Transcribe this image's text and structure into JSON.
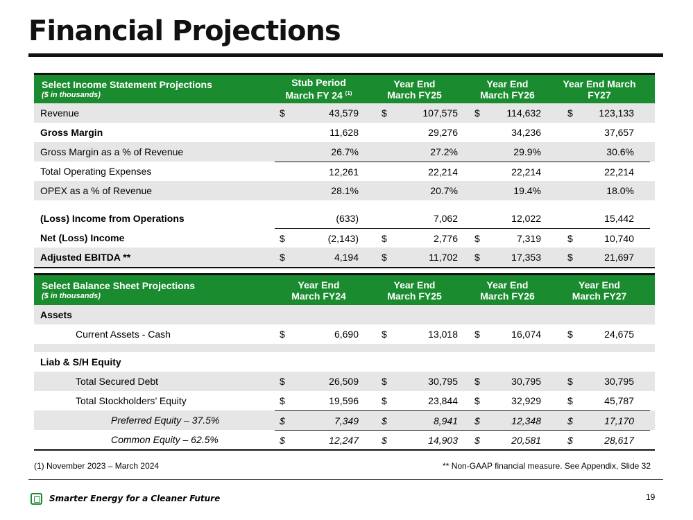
{
  "title": "Financial Projections",
  "income": {
    "header": {
      "title": "Select Income Statement Projections",
      "subtitle": "($ in thousands)",
      "cols": [
        {
          "line1": "Stub Period",
          "line2": "March FY 24",
          "sup": "(1)"
        },
        {
          "line1": "Year End",
          "line2": "March FY25",
          "sup": ""
        },
        {
          "line1": "Year End",
          "line2": "March FY26",
          "sup": ""
        },
        {
          "line1": "Year End March",
          "line2": "FY27",
          "sup": ""
        }
      ]
    },
    "rows": [
      {
        "label": "Revenue",
        "cur": [
          "$",
          "$",
          "$",
          "$"
        ],
        "vals": [
          "43,579",
          "107,575",
          "114,632",
          "123,133"
        ]
      },
      {
        "label": "Gross Margin",
        "cur": [
          "",
          "",
          "",
          ""
        ],
        "vals": [
          "11,628",
          "29,276",
          "34,236",
          "37,657"
        ]
      },
      {
        "label": "Gross Margin as a % of Revenue",
        "cur": [
          "",
          "",
          "",
          ""
        ],
        "vals": [
          "26.7%",
          "27.2%",
          "29.9%",
          "30.6%"
        ]
      },
      {
        "label": "Total Operating Expenses",
        "cur": [
          "",
          "",
          "",
          ""
        ],
        "vals": [
          "12,261",
          "22,214",
          "22,214",
          "22,214"
        ]
      },
      {
        "label": "OPEX as a % of Revenue",
        "cur": [
          "",
          "",
          "",
          ""
        ],
        "vals": [
          "28.1%",
          "20.7%",
          "19.4%",
          "18.0%"
        ]
      },
      {
        "label": "(Loss) Income from Operations",
        "cur": [
          "",
          "",
          "",
          ""
        ],
        "vals": [
          "(633)",
          "7,062",
          "12,022",
          "15,442"
        ]
      },
      {
        "label": "Net (Loss) Income",
        "cur": [
          "$",
          "$",
          "$",
          "$"
        ],
        "vals": [
          "(2,143)",
          "2,776",
          "7,319",
          "10,740"
        ]
      },
      {
        "label": "Adjusted EBITDA **",
        "cur": [
          "$",
          "$",
          "$",
          "$"
        ],
        "vals": [
          "4,194",
          "11,702",
          "17,353",
          "21,697"
        ]
      }
    ]
  },
  "balance": {
    "header": {
      "title": "Select Balance Sheet Projections",
      "subtitle": "($ in thousands)",
      "cols": [
        {
          "line1": "Year End",
          "line2": "March FY24"
        },
        {
          "line1": "Year End",
          "line2": "March FY25"
        },
        {
          "line1": "Year End",
          "line2": "March FY26"
        },
        {
          "line1": "Year End",
          "line2": "March FY27"
        }
      ]
    },
    "rows": [
      {
        "label": "Assets",
        "cur": [
          "",
          "",
          "",
          ""
        ],
        "vals": [
          "",
          "",
          "",
          ""
        ]
      },
      {
        "label": "Current Assets - Cash",
        "cur": [
          "$",
          "$",
          "$",
          "$"
        ],
        "vals": [
          "6,690",
          "13,018",
          "16,074",
          "24,675"
        ]
      },
      {
        "label": "Liab & S/H Equity",
        "cur": [
          "",
          "",
          "",
          ""
        ],
        "vals": [
          "",
          "",
          "",
          ""
        ]
      },
      {
        "label": "Total Secured Debt",
        "cur": [
          "$",
          "$",
          "$",
          "$"
        ],
        "vals": [
          "26,509",
          "30,795",
          "30,795",
          "30,795"
        ]
      },
      {
        "label": "Total Stockholders’ Equity",
        "cur": [
          "$",
          "$",
          "$",
          "$"
        ],
        "vals": [
          "19,596",
          "23,844",
          "32,929",
          "45,787"
        ]
      },
      {
        "label": "Preferred Equity – 37.5%",
        "cur": [
          "$",
          "$",
          "$",
          "$"
        ],
        "vals": [
          "7,349",
          "8,941",
          "12,348",
          "17,170"
        ]
      },
      {
        "label": "Common Equity – 62.5%",
        "cur": [
          "$",
          "$",
          "$",
          "$"
        ],
        "vals": [
          "12,247",
          "14,903",
          "20,581",
          "28,617"
        ]
      }
    ]
  },
  "footnote_left": "(1) November 2023 – March 2024",
  "footnote_right": "** Non-GAAP financial measure. See Appendix, Slide 32",
  "tagline": "Smarter Energy for a Cleaner Future",
  "page_number": "19",
  "colors": {
    "header_green": "#1a8c2f",
    "shade": "#e6e6e6"
  },
  "logo_icon": "leaf-square-logo-icon"
}
